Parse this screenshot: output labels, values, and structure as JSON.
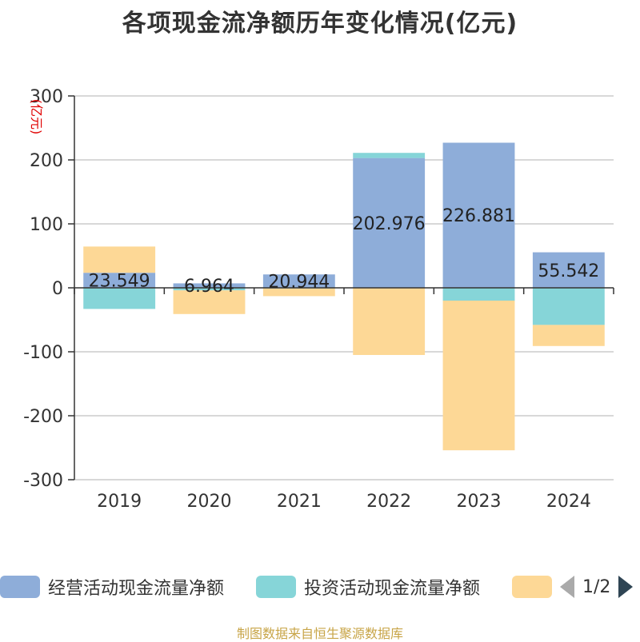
{
  "title": "各项现金流净额历年变化情况(亿元)",
  "source": "制图数据来自恒生聚源数据库",
  "legend_pager": {
    "text": "1/2"
  },
  "colors": {
    "operating": "#8eadd9",
    "investing": "#86d5d8",
    "financing": "#fdd896",
    "axis": "#333333",
    "grid": "#cccccc",
    "unit": "#e00000"
  },
  "chart_data": {
    "type": "bar",
    "stacked": true,
    "title": "各项现金流净额历年变化情况(亿元)",
    "ylabel": "(亿元)",
    "ylim": [
      -300,
      300
    ],
    "yticks": [
      300,
      200,
      100,
      0,
      -100,
      -200,
      -300
    ],
    "grid": true,
    "legend_position": "bottom",
    "categories": [
      "2019",
      "2020",
      "2021",
      "2022",
      "2023",
      "2024"
    ],
    "series": [
      {
        "name": "经营活动现金流量净额",
        "values": [
          23.549,
          6.964,
          20.944,
          202.976,
          226.881,
          55.542
        ],
        "labels": [
          "23.549",
          "6.964",
          "20.944",
          "202.976",
          "226.881",
          "55.542"
        ]
      },
      {
        "name": "投资活动现金流量净额",
        "values": [
          -33,
          -4,
          -1,
          8,
          -20,
          -58
        ]
      },
      {
        "name": "",
        "values": [
          41,
          -37,
          -12,
          -105,
          -234,
          -33
        ]
      }
    ]
  }
}
